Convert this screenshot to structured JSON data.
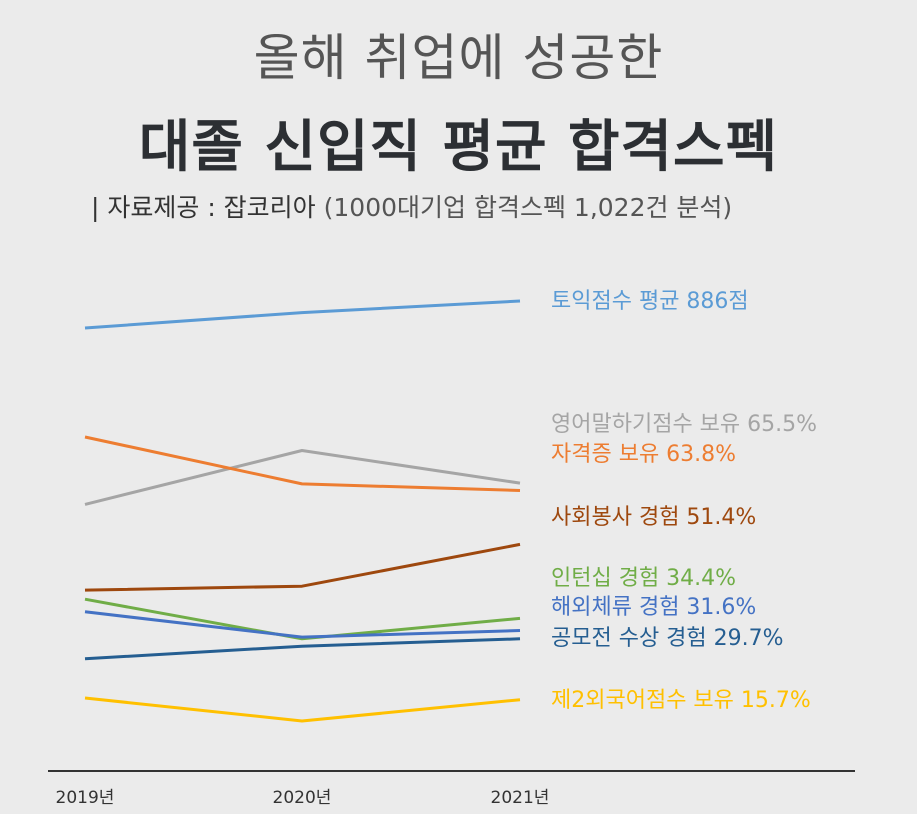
{
  "header": {
    "title_line1": "올해 취업에 성공한",
    "title_line2": "대졸 신입직 평균 합격스펙",
    "source_prefix": "| 자료제공 : 잡코리아",
    "source_note": "(1000대기업 합격스펙 1,022건 분석)"
  },
  "chart_data": {
    "type": "line",
    "title": "대졸 신입직 평균 합격스펙",
    "x": [
      "2019년",
      "2020년",
      "2021년"
    ],
    "series": [
      {
        "name": "토익점수 평균 886점",
        "color": "#5b9bd5",
        "values": [
          858,
          874,
          886
        ]
      },
      {
        "name": "영어말하기점수 보유 65.5%",
        "color": "#a5a5a5",
        "values": [
          60.6,
          73.0,
          65.5
        ]
      },
      {
        "name": "자격증 보유 63.8%",
        "color": "#ed7d31",
        "values": [
          76.1,
          65.3,
          63.8
        ]
      },
      {
        "name": "사회봉사 경험 51.4%",
        "color": "#9e480e",
        "values": [
          40.9,
          41.8,
          51.4
        ]
      },
      {
        "name": "인턴십 경험 34.4%",
        "color": "#70ad47",
        "values": [
          38.8,
          29.7,
          34.4
        ]
      },
      {
        "name": "해외체류 경험 31.6%",
        "color": "#4472c4",
        "values": [
          35.9,
          30.1,
          31.6
        ]
      },
      {
        "name": "공모전 수상 경험 29.7%",
        "color": "#255e91",
        "values": [
          25.1,
          28.0,
          29.7
        ]
      },
      {
        "name": "제2외국어점수 보유 15.7%",
        "color": "#ffc000",
        "values": [
          16.1,
          10.8,
          15.7
        ]
      }
    ]
  }
}
